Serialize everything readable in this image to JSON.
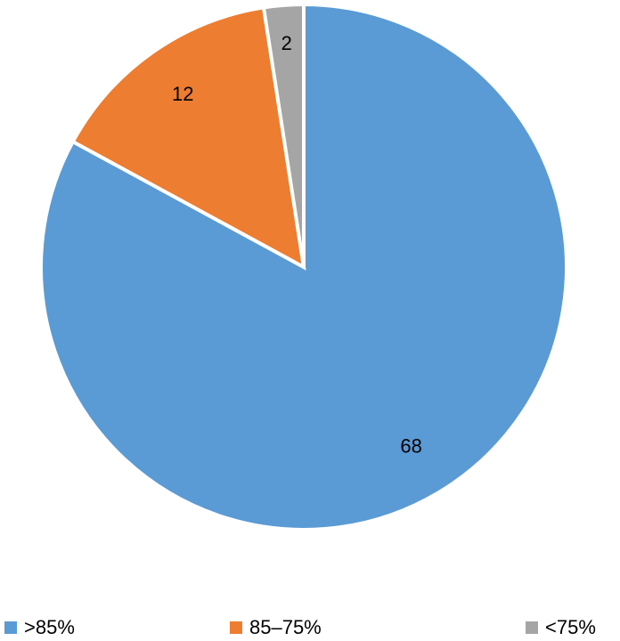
{
  "chart_data": {
    "type": "pie",
    "categories": [
      ">85%",
      "85–75%",
      "<75%"
    ],
    "values": [
      68,
      12,
      2
    ],
    "colors": [
      "#5b9bd5",
      "#ed7d31",
      "#a5a5a5"
    ],
    "legend": "bottom"
  }
}
